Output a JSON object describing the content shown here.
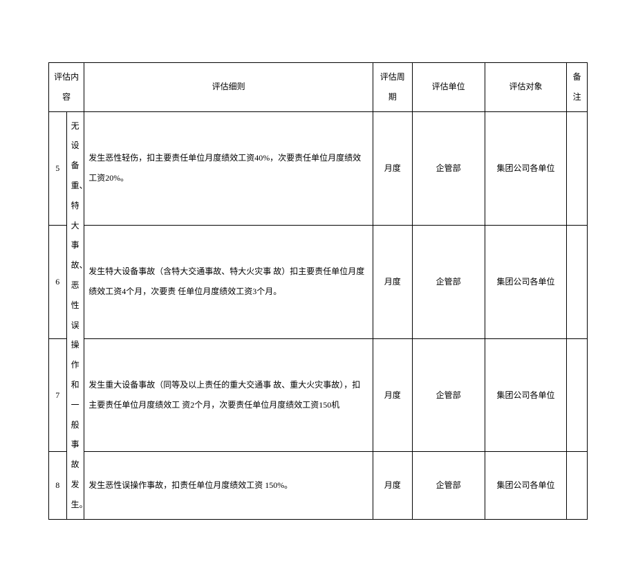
{
  "table": {
    "headers": {
      "content": "评估内容",
      "detail": "评估细则",
      "period": "评估周期",
      "unit": "评估单位",
      "target": "评估对象",
      "note": "备注"
    },
    "merged_content": "无设备重、特大事故、 恶性误操作和一般事 故发生。",
    "rows": [
      {
        "num": "5",
        "detail": "发生恶性轻伤，扣主要责任单位月度绩效工资40%，次要责任单位月度绩效工资20%。",
        "period": "月度",
        "unit": "企管部",
        "target": "集团公司各单位",
        "note": ""
      },
      {
        "num": "6",
        "detail": "发生特大设备事故（含特大交通事故、特大火灾事 故）扣主要责任单位月度绩效工资4个月，次要责 任单位月度绩效工资3个月。",
        "period": "月度",
        "unit": "企管部",
        "target": "集团公司各单位",
        "note": ""
      },
      {
        "num": "7",
        "detail": "发生重大设备事故（同等及以上责任的重大交通事 故、重大火灾事故），扣主要责任单位月度绩效工 资2个月，次要责任单位月度绩效工资150机",
        "period": "月度",
        "unit": "企管部",
        "target": "集团公司各单位",
        "note": ""
      },
      {
        "num": "8",
        "detail": "发生恶性误操作事故，扣责任单位月度绩效工资 150%。",
        "period": "月度",
        "unit": "企管部",
        "target": "集团公司各单位",
        "note": ""
      }
    ]
  },
  "colors": {
    "border": "#000000",
    "text": "#000000",
    "background": "#ffffff"
  },
  "typography": {
    "font_family": "SimSun",
    "font_size": 12,
    "line_height": 2.4
  }
}
